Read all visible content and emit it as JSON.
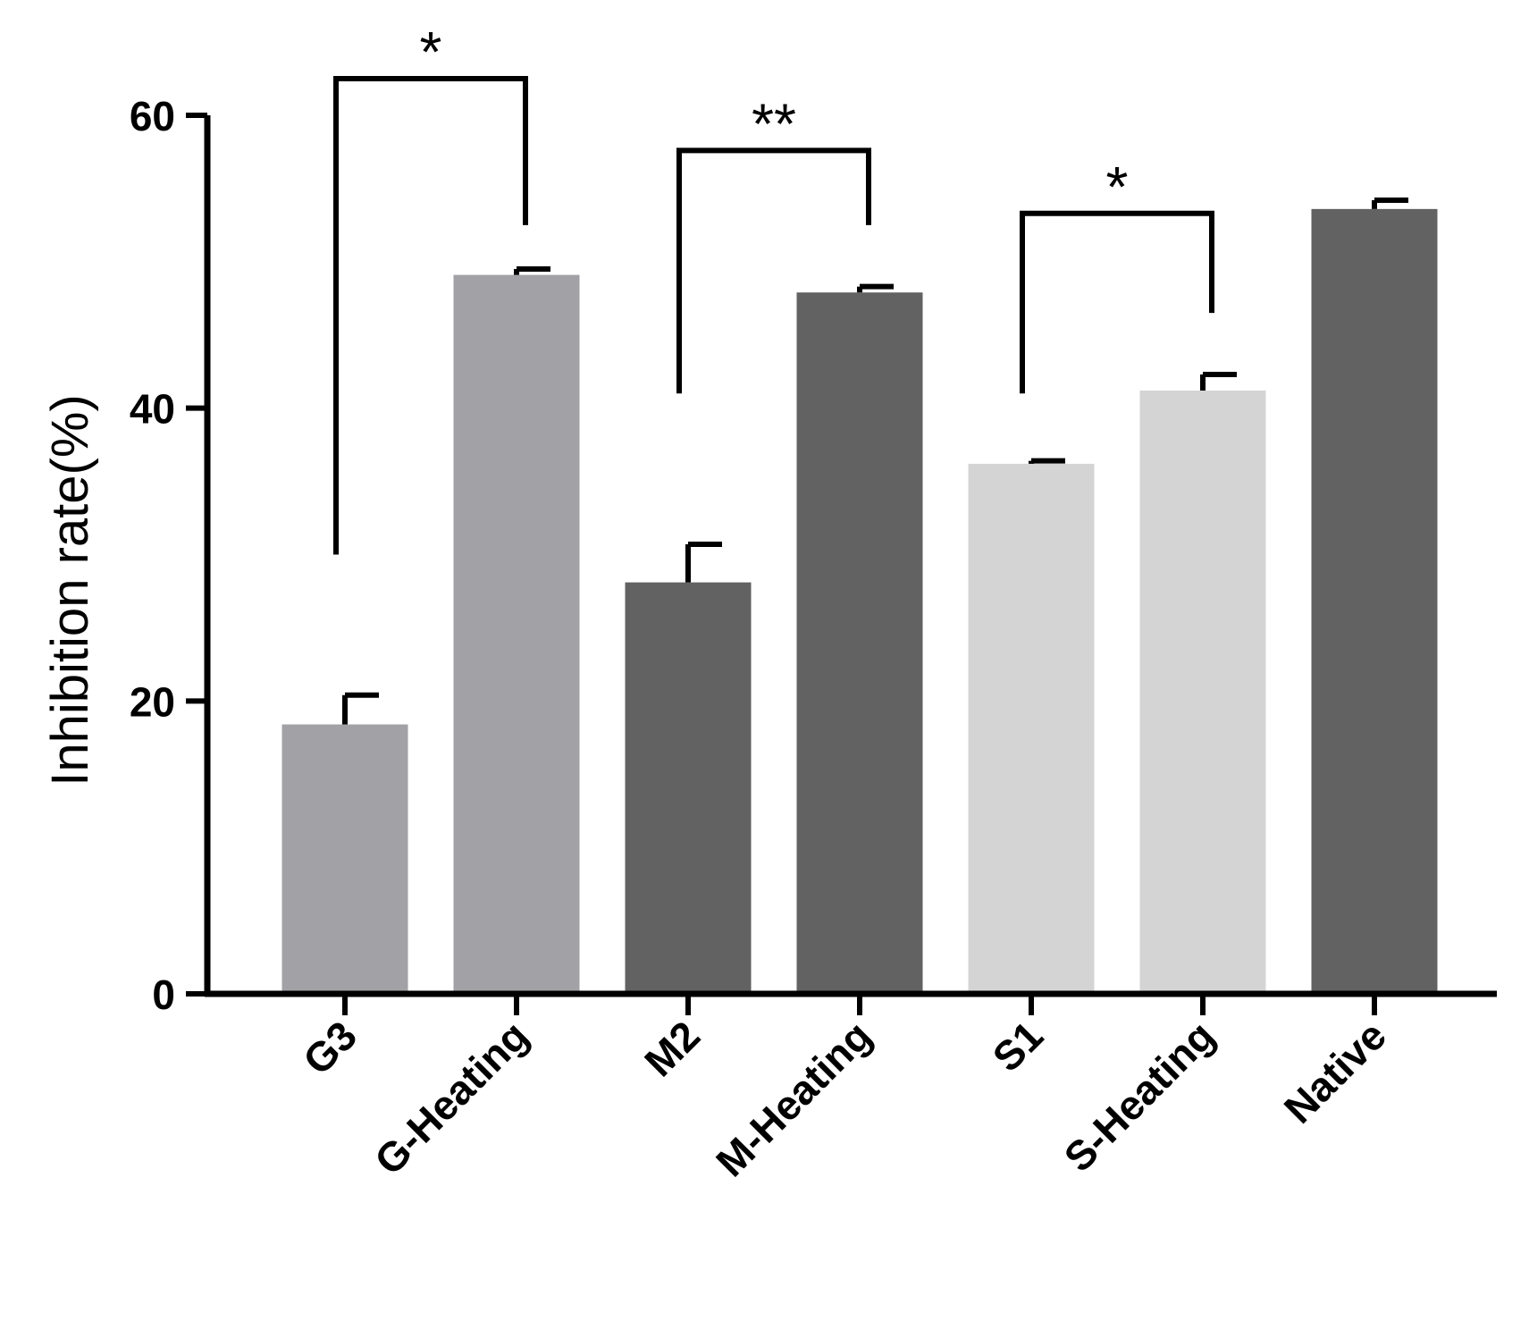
{
  "chart_data": {
    "type": "bar",
    "title": "",
    "xlabel": "",
    "ylabel": "Inhibition rate(%)",
    "ylim": [
      0,
      60
    ],
    "yticks": [
      0,
      20,
      40,
      60
    ],
    "grid": false,
    "categories": [
      "G3",
      "G-Heating",
      "M2",
      "M-Heating",
      "S1",
      "S-Heating",
      "Native"
    ],
    "values": [
      18.4,
      49.1,
      28.1,
      47.9,
      36.2,
      41.2,
      53.6
    ],
    "errors": [
      2.0,
      0.4,
      2.6,
      0.4,
      0.2,
      1.1,
      0.6
    ],
    "bar_colors": [
      "#a2a2a6",
      "#a2a2a6",
      "#626262",
      "#626262",
      "#d4d4d4",
      "#d4d4d4",
      "#626262"
    ],
    "significance": [
      {
        "from": 0,
        "to": 1,
        "label": "*",
        "level": 62.5,
        "left_drop": 30,
        "right_drop": 52.5
      },
      {
        "from": 2,
        "to": 3,
        "label": "**",
        "level": 57.6,
        "left_drop": 41,
        "right_drop": 52.5
      },
      {
        "from": 4,
        "to": 5,
        "label": "*",
        "level": 53.3,
        "left_drop": 41,
        "right_drop": 46.5
      }
    ]
  }
}
